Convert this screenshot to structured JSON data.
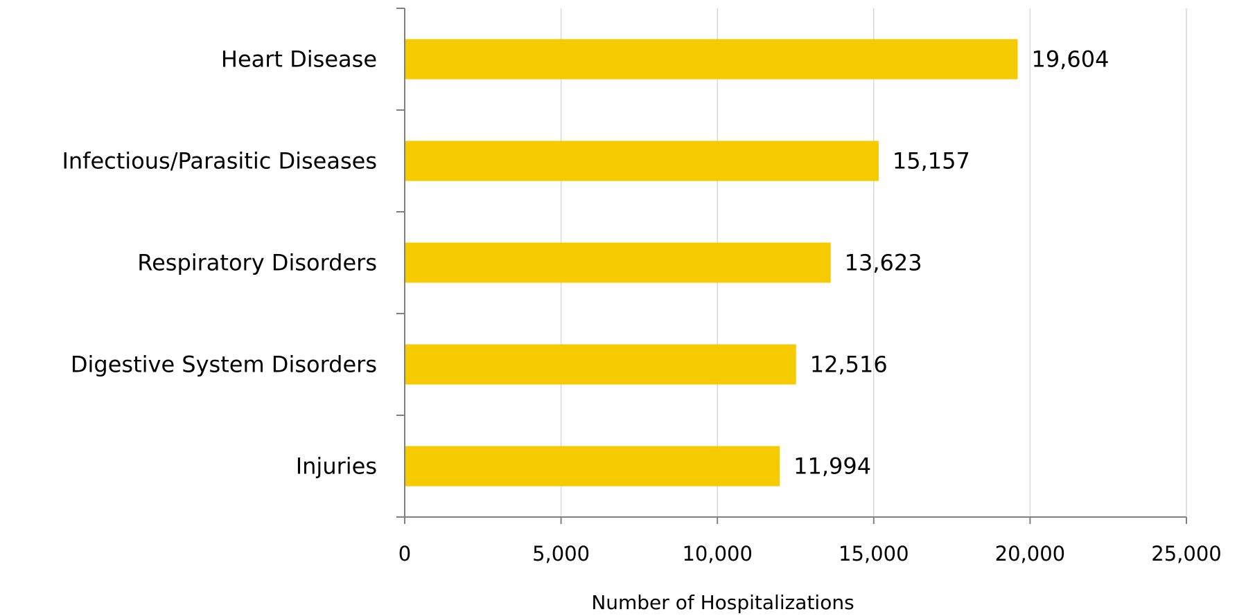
{
  "chart_data": {
    "type": "bar",
    "orientation": "horizontal",
    "categories": [
      "Heart Disease",
      "Infectious/Parasitic Diseases",
      "Respiratory Disorders",
      "Digestive System Disorders",
      "Injuries"
    ],
    "values": [
      19604,
      15157,
      13623,
      12516,
      11994
    ],
    "data_labels": [
      "19,604",
      "15,157",
      "13,623",
      "12,516",
      "11,994"
    ],
    "xlabel": "Number of Hospitalizations",
    "ylabel": "",
    "xlim": [
      0,
      25000
    ],
    "x_ticks": [
      0,
      5000,
      10000,
      15000,
      20000,
      25000
    ],
    "x_tick_labels": [
      "0",
      "5,000",
      "10,000",
      "15,000",
      "20,000",
      "25,000"
    ],
    "grid": "vertical",
    "legend": "none",
    "bar_color": "#F5CB00",
    "grid_color": "#D9D9D9",
    "axis_color": "#808080"
  }
}
